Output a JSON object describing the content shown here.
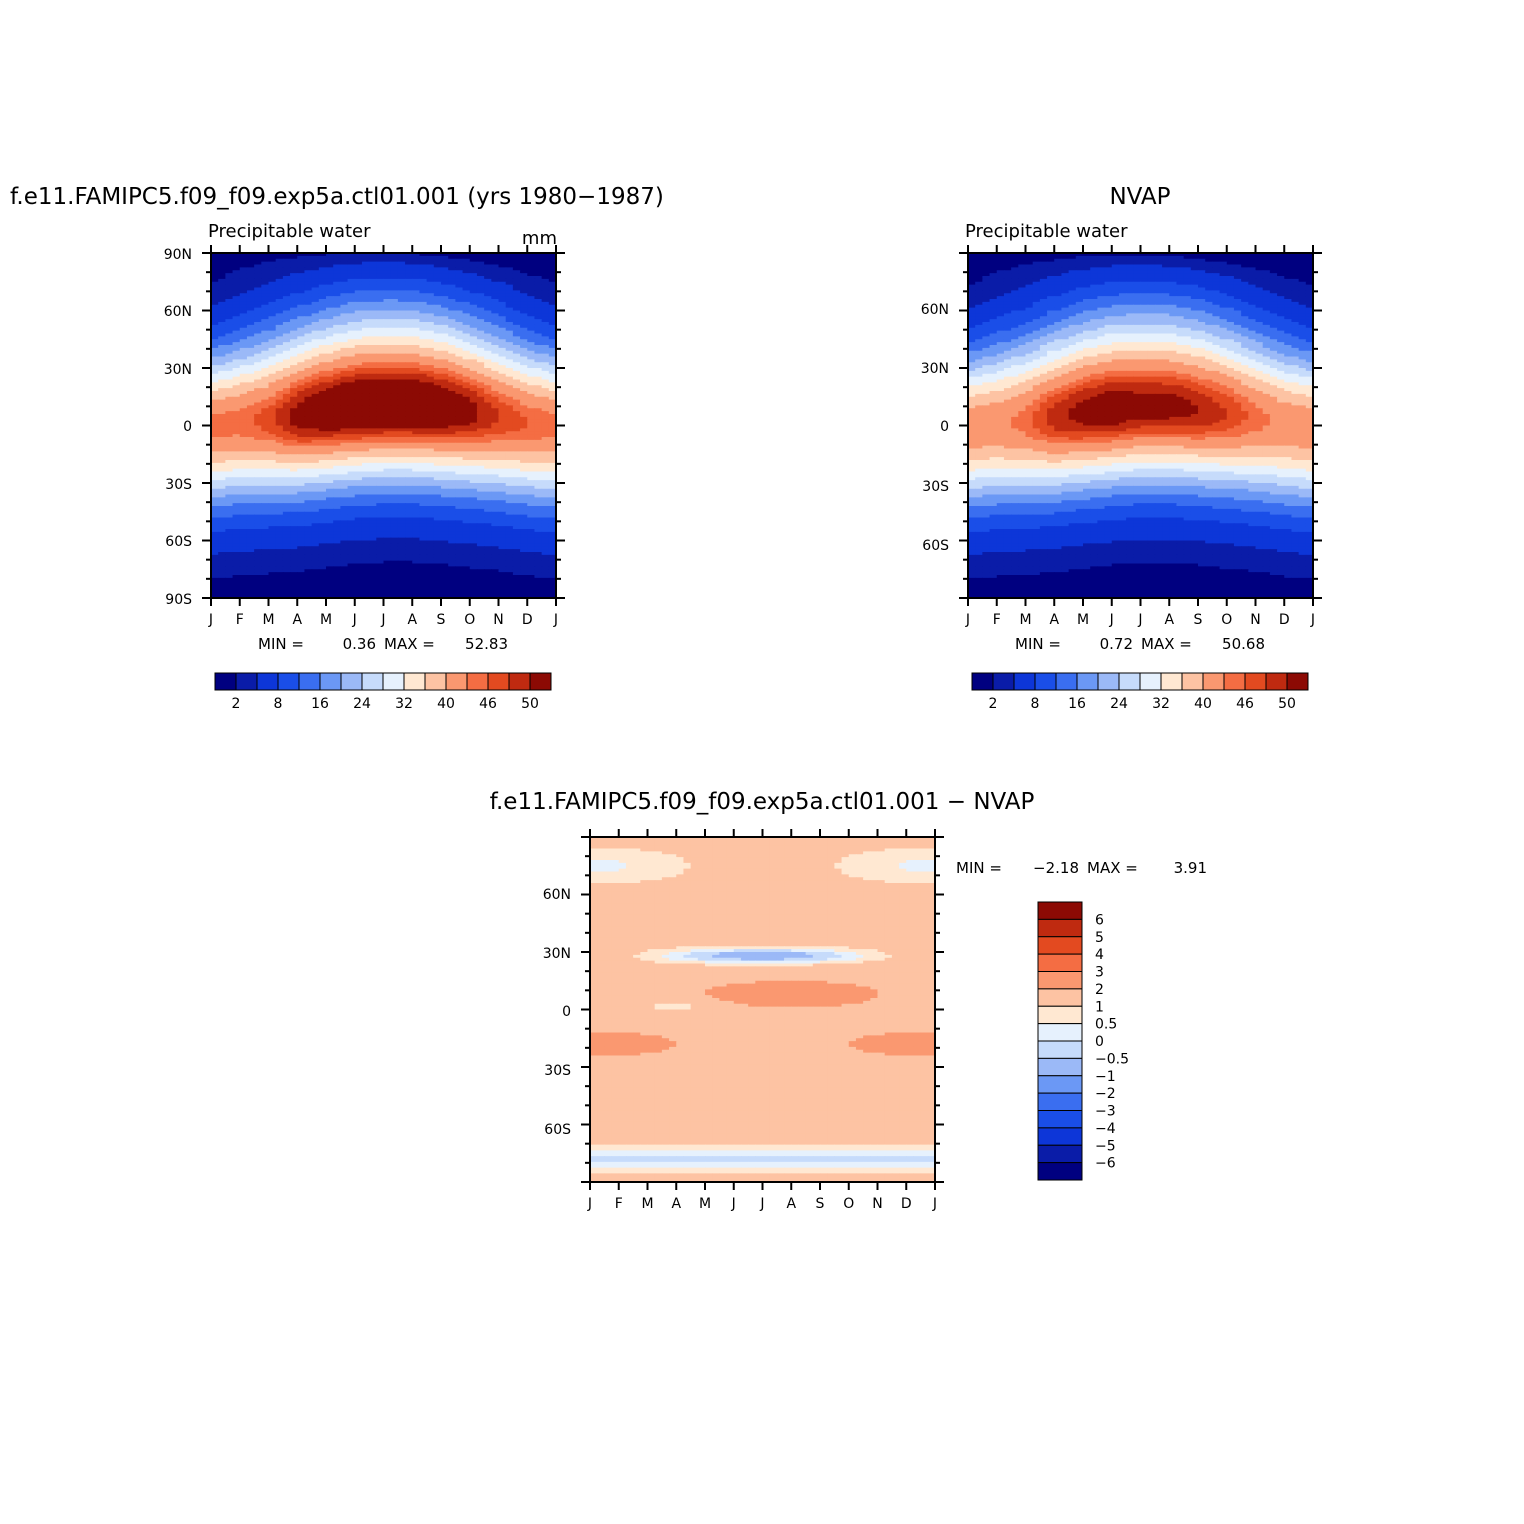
{
  "chart_data": [
    {
      "type": "heatmap",
      "id": "model",
      "title": "f.e11.FAMIPC5.f09_f09.exp5a.ctl01.001 (yrs 1980−1987)",
      "subtitle": "Precipitable water",
      "units": "mm",
      "x_tick_labels": [
        "J",
        "F",
        "M",
        "A",
        "M",
        "J",
        "J",
        "A",
        "S",
        "O",
        "N",
        "D",
        "J"
      ],
      "y_tick_labels": [
        "90N",
        "60N",
        "30N",
        "0",
        "30S",
        "60S",
        "90S"
      ],
      "ylim": [
        -90,
        90
      ],
      "min_label": "MIN =",
      "min_value": "0.36",
      "max_label": "MAX =",
      "max_value": "52.83",
      "min": 0.36,
      "max": 52.83,
      "peak_lat": [
        0,
        1.5,
        3,
        5,
        7.5,
        9.5,
        10.5,
        10.5,
        9,
        7,
        4.5,
        1.5
      ],
      "peak_max": [
        44,
        44,
        46,
        50,
        52,
        53,
        53,
        53,
        52,
        50,
        47,
        45
      ]
    },
    {
      "type": "heatmap",
      "id": "nvap",
      "title": "NVAP",
      "subtitle": "Precipitable water",
      "x_tick_labels": [
        "J",
        "F",
        "M",
        "A",
        "M",
        "J",
        "J",
        "A",
        "S",
        "O",
        "N",
        "D",
        "J"
      ],
      "y_tick_labels": [
        "60N",
        "30N",
        "0",
        "30S",
        "60S"
      ],
      "ylim": [
        -90,
        90
      ],
      "min_label": "MIN =",
      "min_value": "0.72",
      "max_label": "MAX =",
      "max_value": "50.68",
      "min": 0.72,
      "max": 50.68,
      "peak_lat": [
        -1,
        0.5,
        2,
        4,
        6.5,
        8.5,
        9.5,
        9.5,
        8,
        6,
        3.5,
        0.5
      ],
      "peak_max": [
        42,
        42,
        44,
        48,
        50,
        51,
        50,
        50,
        49,
        47,
        44,
        42
      ]
    },
    {
      "type": "heatmap",
      "id": "diff",
      "title": "f.e11.FAMIPC5.f09_f09.exp5a.ctl01.001  −  NVAP",
      "x_tick_labels": [
        "J",
        "F",
        "M",
        "A",
        "M",
        "J",
        "J",
        "A",
        "S",
        "O",
        "N",
        "D",
        "J"
      ],
      "y_tick_labels": [
        "60N",
        "30N",
        "0",
        "30S",
        "60S"
      ],
      "ylim": [
        -90,
        90
      ],
      "min_label": "MIN =",
      "min_value": "−2.18",
      "max_label": "MAX =",
      "max_value": "3.91",
      "min": -2.18,
      "max": 3.91
    }
  ],
  "colorbar_main": {
    "labels": [
      "2",
      "8",
      "16",
      "24",
      "32",
      "40",
      "46",
      "50"
    ],
    "levels": [
      2,
      4,
      8,
      12,
      16,
      20,
      24,
      28,
      32,
      36,
      40,
      44,
      46,
      48,
      50
    ],
    "colors": [
      "#000080",
      "#0a1ca8",
      "#0d36d8",
      "#1a4ee8",
      "#3a6ef0",
      "#6b98f5",
      "#9bb9f7",
      "#c6dbfb",
      "#e6f1fd",
      "#ffe8d2",
      "#fdc3a3",
      "#fa9870",
      "#f46d43",
      "#e34a20",
      "#bf2a10",
      "#8c0a04"
    ]
  },
  "colorbar_diff": {
    "labels": [
      "6",
      "5",
      "4",
      "3",
      "2",
      "1",
      "0.5",
      "0",
      "−0.5",
      "−1",
      "−2",
      "−3",
      "−4",
      "−5",
      "−6"
    ],
    "levels": [
      -6,
      -5,
      -4,
      -3,
      -2,
      -1,
      -0.5,
      0,
      0.5,
      1,
      2,
      3,
      4,
      5,
      6
    ],
    "colors": [
      "#000080",
      "#0a1ca8",
      "#0d36d8",
      "#1a4ee8",
      "#3a6ef0",
      "#6b98f5",
      "#9bb9f7",
      "#c6dbfb",
      "#e6f1fd",
      "#ffe8d2",
      "#fdc3a3",
      "#fa9870",
      "#f46d43",
      "#e34a20",
      "#bf2a10",
      "#8c0a04"
    ]
  }
}
